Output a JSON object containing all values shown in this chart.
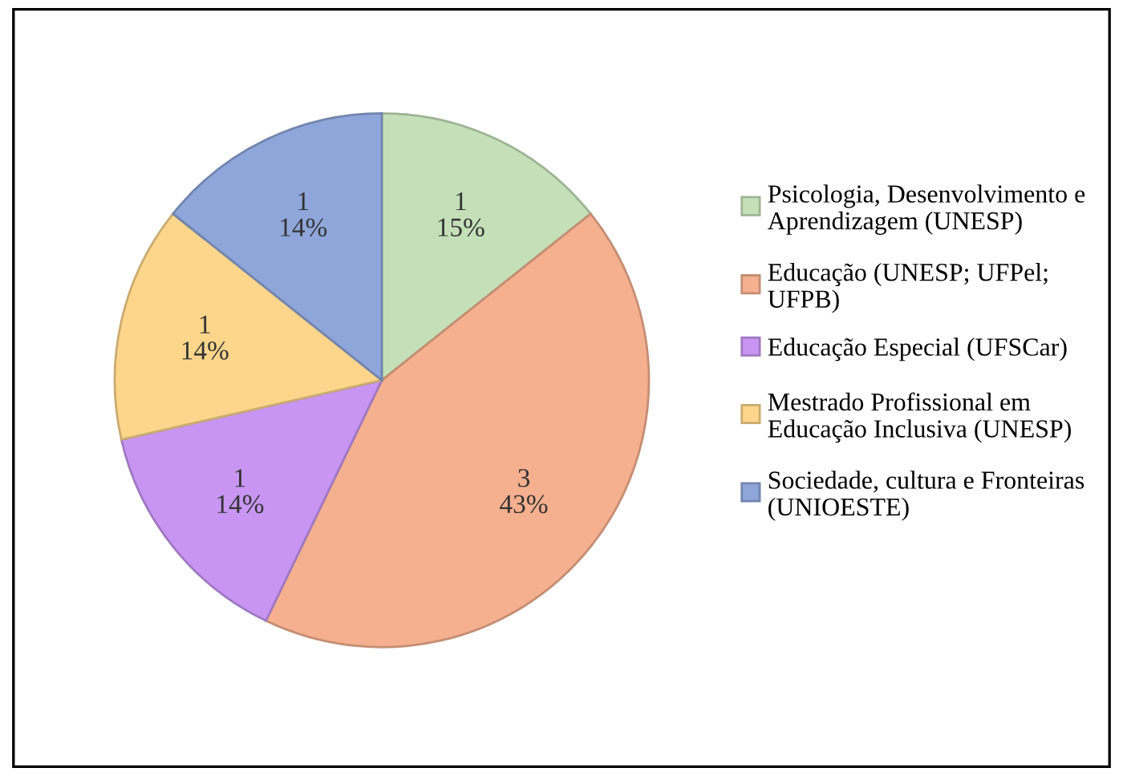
{
  "chart_data": {
    "type": "pie",
    "categories": [
      "Psicologia, Desenvolvimento e Aprendizagem (UNESP)",
      "Educação (UNESP; UFPel; UFPB)",
      "Educação Especial (UFSCar)",
      "Mestrado Profissional em Educação Inclusiva (UNESP)",
      "Sociedade, cultura e Fronteiras (UNIOESTE)"
    ],
    "values": [
      1,
      3,
      1,
      1,
      1
    ],
    "value_labels": [
      "1\n15%",
      "3\n43%",
      "1\n14%",
      "1\n14%",
      "1\n14%"
    ],
    "colors": [
      "#c5e0b8",
      "#f5b090",
      "#c896f2",
      "#fdd68c",
      "#8fa6da"
    ],
    "legend": "right"
  }
}
